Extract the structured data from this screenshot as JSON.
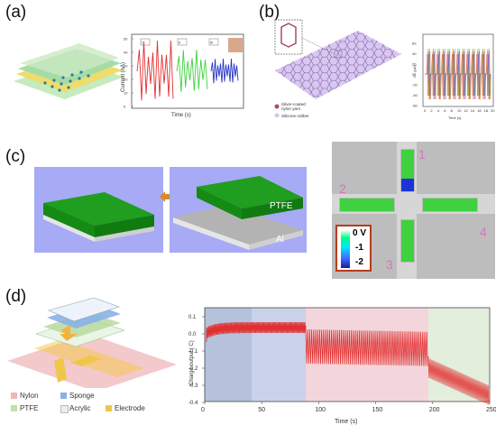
{
  "panels": {
    "a": {
      "label": "(a)",
      "chart": {
        "ylabel": "Current (nA)",
        "xlabel": "Time (s)",
        "yticks": [
          "0",
          "10",
          "20",
          "30",
          "40",
          "50"
        ],
        "tags": [
          "I",
          "II",
          "III"
        ]
      }
    },
    "b": {
      "label": "(b)",
      "legend": {
        "item1": "Silver-coated nylon yarn",
        "item2": "Silicone rubber"
      },
      "chart": {
        "ylabel": "Isc (μA)",
        "xlabel": "Time (s)",
        "xticks": [
          "0",
          "2",
          "4",
          "6",
          "8",
          "10",
          "12",
          "14",
          "16",
          "18",
          "20"
        ],
        "yticks": [
          "60",
          "40",
          "20",
          "0",
          "-20",
          "-40",
          "-60"
        ]
      }
    },
    "c": {
      "label": "(c)",
      "ptfe_label": "PTFE",
      "al_label": "Al",
      "pixels": [
        "1",
        "2",
        "3",
        "4"
      ],
      "scale": {
        "labels": [
          "0 V",
          "-1",
          "-2"
        ]
      }
    },
    "d": {
      "label": "(d)",
      "legend": [
        "Nylon",
        "Sponge",
        "PTFE",
        "Acrylic",
        "Electrode"
      ],
      "chart": {
        "ylabel": "Charge output ( C)",
        "xlabel": "Time (s)",
        "xticks": [
          "0",
          "50",
          "100",
          "150",
          "200",
          "250"
        ],
        "yticks": [
          "0.1",
          "0.0",
          "-0.1",
          "-0.2",
          "-0.3",
          "-0.4"
        ]
      }
    }
  },
  "colors": {
    "green": "#3fd13f",
    "red": "#e13030",
    "blue": "#2633c9",
    "purple_bg": "#a7aaf4"
  }
}
